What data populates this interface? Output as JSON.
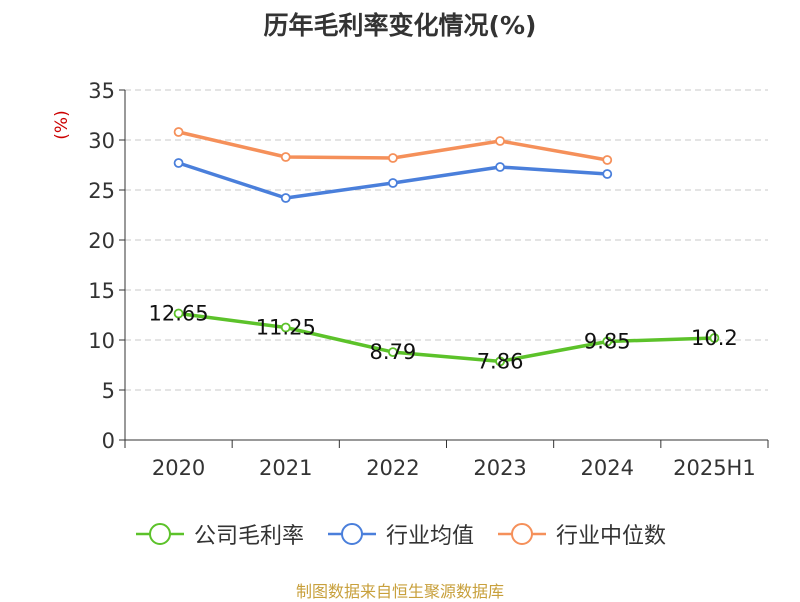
{
  "chart_data": {
    "type": "line",
    "title": "历年毛利率变化情况(%)",
    "ylabel": "(%)",
    "categories": [
      "2020",
      "2021",
      "2022",
      "2023",
      "2024",
      "2025H1"
    ],
    "ylim": [
      0,
      35
    ],
    "yticks": [
      0,
      5,
      10,
      15,
      20,
      25,
      30,
      35
    ],
    "grid": true,
    "legend_position": "bottom",
    "series": [
      {
        "name": "公司毛利率",
        "color": "#5cc22a",
        "values": [
          12.65,
          11.25,
          8.79,
          7.86,
          9.85,
          10.2
        ],
        "labels": [
          "12.65",
          "11.25",
          "8.79",
          "7.86",
          "9.85",
          "10.2"
        ]
      },
      {
        "name": "行业均值",
        "color": "#4a7fdb",
        "values": [
          27.7,
          24.2,
          25.7,
          27.3,
          26.6,
          null
        ]
      },
      {
        "name": "行业中位数",
        "color": "#f5905a",
        "values": [
          30.8,
          28.3,
          28.2,
          29.9,
          28.0,
          null
        ]
      }
    ]
  },
  "footer": {
    "source": "制图数据来自恒生聚源数据库"
  }
}
